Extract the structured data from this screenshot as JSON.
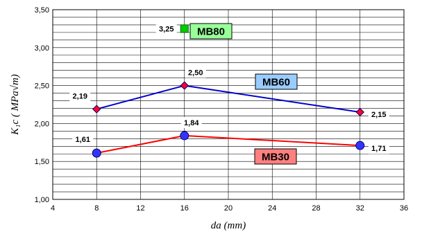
{
  "chart_data": {
    "type": "line",
    "xlabel": "da (mm)",
    "ylabel": "K₁c ( MPa√m)",
    "xlim": [
      4,
      36
    ],
    "ylim": [
      1.0,
      3.5
    ],
    "xticks": [
      4,
      8,
      12,
      16,
      20,
      24,
      28,
      32,
      36
    ],
    "yticks": [
      "1,00",
      "1,50",
      "2,00",
      "2,50",
      "3,00",
      "3,50"
    ],
    "ytick_values": [
      1.0,
      1.5,
      2.0,
      2.5,
      3.0,
      3.5
    ],
    "grid": true,
    "series": [
      {
        "name": "MB30",
        "x": [
          8,
          16,
          32
        ],
        "y": [
          1.61,
          1.84,
          1.71
        ],
        "labels": [
          "1,61",
          "1,84",
          "1,71"
        ],
        "line_color": "#ff0000",
        "marker": "circle",
        "marker_color": "#3333ff",
        "legend_color": "#ff8080"
      },
      {
        "name": "MB60",
        "x": [
          8,
          16,
          32
        ],
        "y": [
          2.19,
          2.5,
          2.15
        ],
        "labels": [
          "2,19",
          "2,50",
          "2,15"
        ],
        "line_color": "#0000cc",
        "marker": "diamond",
        "marker_color": "#ff0033",
        "legend_color": "#99ccff"
      },
      {
        "name": "MB80",
        "x": [
          16
        ],
        "y": [
          3.25
        ],
        "labels": [
          "3,25"
        ],
        "line_color": "#00cc00",
        "marker": "square",
        "marker_color": "#00cc00",
        "legend_color": "#99ff99"
      }
    ]
  }
}
